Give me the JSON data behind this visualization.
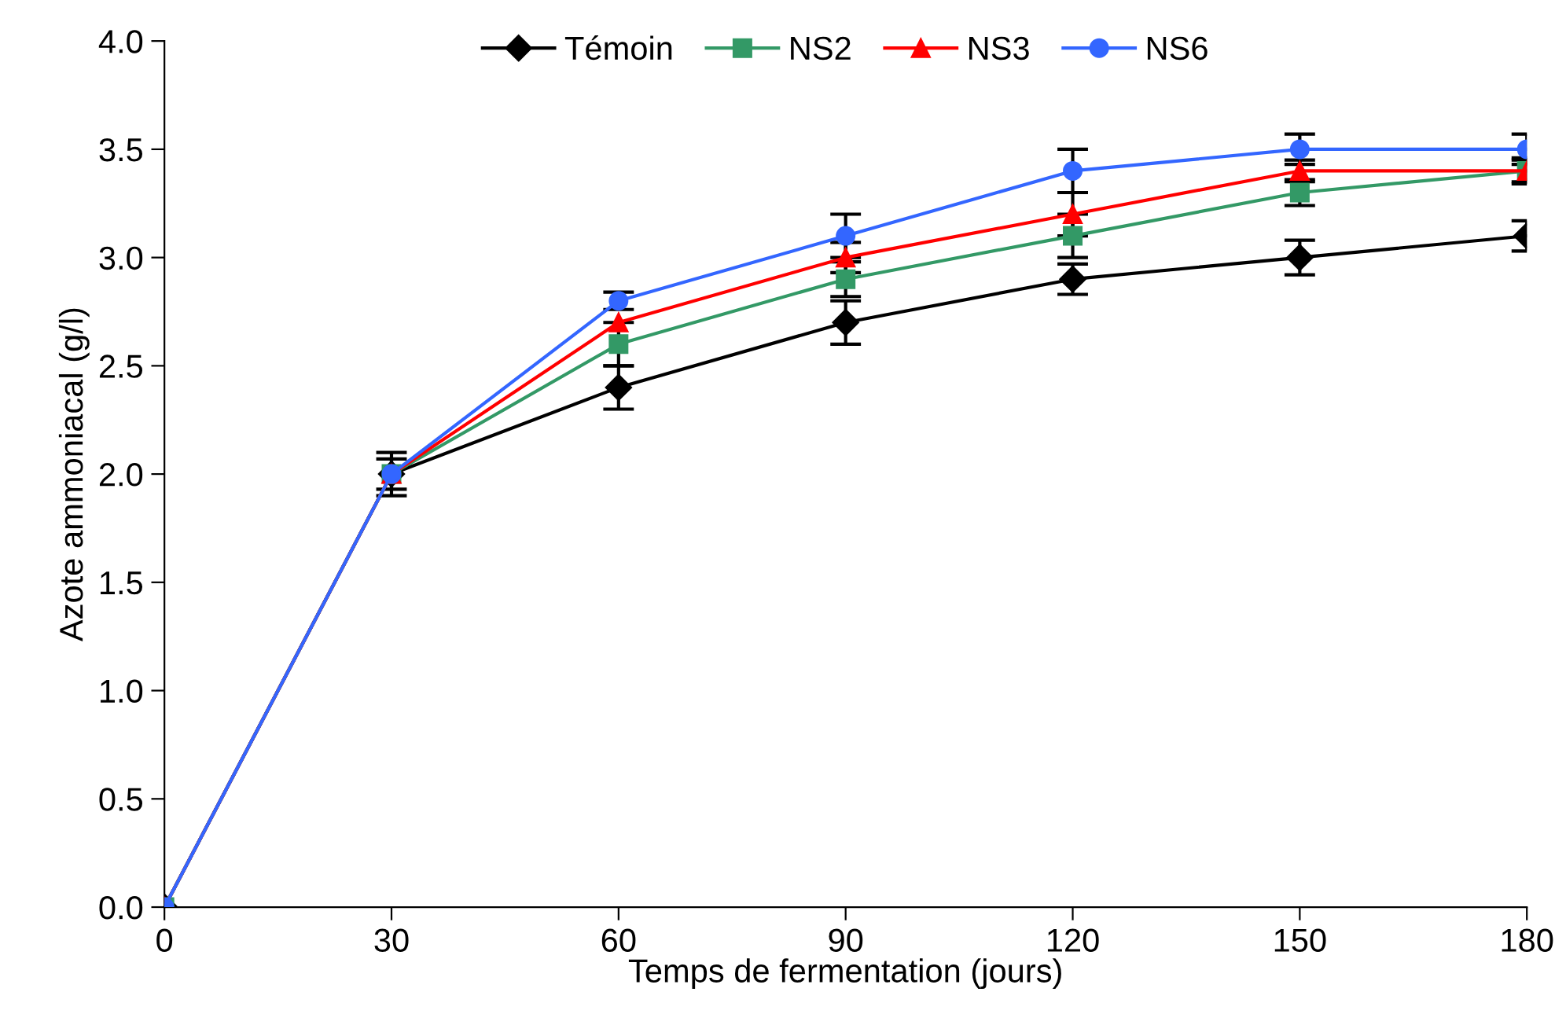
{
  "chart_data": {
    "type": "line",
    "xlabel": "Temps de fermentation (jours)",
    "ylabel": "Azote ammoniacal (g/l)",
    "x": [
      0,
      30,
      60,
      90,
      120,
      150,
      180
    ],
    "xlim": [
      0,
      180
    ],
    "xticks": [
      0,
      30,
      60,
      90,
      120,
      150,
      180
    ],
    "ylim": [
      0,
      4
    ],
    "yticks": [
      {
        "value": 0,
        "label": "0.0"
      },
      {
        "value": 0.5,
        "label": "0.5"
      },
      {
        "value": 1,
        "label": "1.0"
      },
      {
        "value": 1.5,
        "label": "1.5"
      },
      {
        "value": 2,
        "label": "2.0"
      },
      {
        "value": 2.5,
        "label": "2.5"
      },
      {
        "value": 3,
        "label": "3.0"
      },
      {
        "value": 3.5,
        "label": "3.5"
      },
      {
        "value": 4,
        "label": "4.0"
      }
    ],
    "grid": false,
    "legend": "top",
    "series": [
      {
        "name": "Témoin",
        "color": "#000000",
        "marker": "diamond",
        "values": [
          0,
          2.0,
          2.4,
          2.7,
          2.9,
          3.0,
          3.1
        ],
        "errors": [
          null,
          0.1,
          0.1,
          0.1,
          0.07,
          0.08,
          0.07
        ]
      },
      {
        "name": "NS2",
        "color": "#339966",
        "marker": "square",
        "values": [
          0,
          2.0,
          2.6,
          2.9,
          3.1,
          3.3,
          3.4
        ],
        "errors": [
          null,
          null,
          0.1,
          0.08,
          0.1,
          0.06,
          0.06
        ]
      },
      {
        "name": "NS3",
        "color": "#ff0000",
        "marker": "triangle",
        "values": [
          0,
          2.0,
          2.7,
          3.0,
          3.2,
          3.4,
          3.4
        ],
        "errors": [
          null,
          null,
          null,
          0.07,
          0.1,
          0.05,
          0.05
        ]
      },
      {
        "name": "NS6",
        "color": "#3366ff",
        "marker": "circle",
        "values": [
          0,
          2.0,
          2.8,
          3.1,
          3.4,
          3.5,
          3.5
        ],
        "errors": [
          null,
          0.07,
          0.04,
          0.1,
          0.1,
          0.07,
          0.07
        ]
      }
    ]
  }
}
